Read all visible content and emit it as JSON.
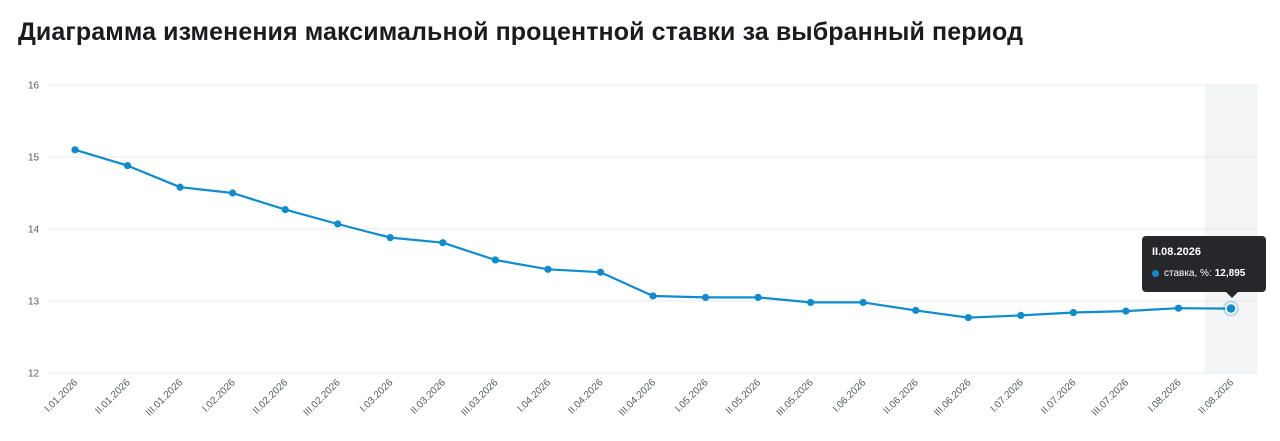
{
  "page": {
    "title": "Диаграмма изменения максимальной процентной ставки за выбранный период"
  },
  "tooltip": {
    "period": "II.08.2026",
    "series_label": "ставка, %:",
    "value_text": "12,895"
  },
  "colors": {
    "line": "#0e8ccd",
    "grid": "#e6e9ee",
    "highlight": "#f3f4f6",
    "tooltip_bg": "#26272b"
  },
  "chart_data": {
    "type": "line",
    "title": "Диаграмма изменения максимальной процентной ставки за выбранный период",
    "xlabel": "",
    "ylabel": "",
    "ylim": [
      12,
      16
    ],
    "yticks": [
      12,
      13,
      14,
      15,
      16
    ],
    "grid": true,
    "highlighted_category": "II.08.2026",
    "categories": [
      "I.01.2026",
      "II.01.2026",
      "III.01.2026",
      "I.02.2026",
      "II.02.2026",
      "III.02.2026",
      "I.03.2026",
      "II.03.2026",
      "III.03.2026",
      "I.04.2026",
      "II.04.2026",
      "III.04.2026",
      "I.05.2026",
      "II.05.2026",
      "III.05.2026",
      "I.06.2026",
      "II.06.2026",
      "III.06.2026",
      "I.07.2026",
      "II.07.2026",
      "III.07.2026",
      "I.08.2026",
      "II.08.2026"
    ],
    "series": [
      {
        "values": [
          15.1,
          14.88,
          14.58,
          14.5,
          14.27,
          14.07,
          13.88,
          13.81,
          13.57,
          13.44,
          13.4,
          13.07,
          13.05,
          13.05,
          12.98,
          12.98,
          12.87,
          12.77,
          12.8,
          12.84,
          12.86,
          12.9,
          12.895
        ]
      }
    ]
  }
}
